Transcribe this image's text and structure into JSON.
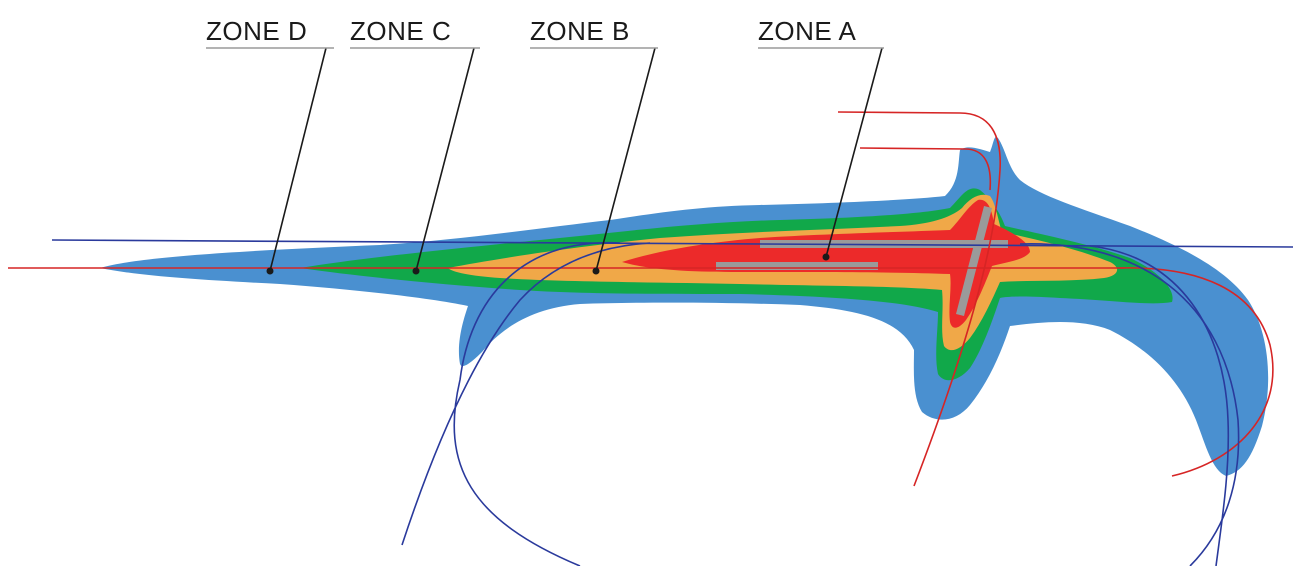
{
  "labels": {
    "zone_a": "ZONE A",
    "zone_b": "ZONE B",
    "zone_c": "ZONE C",
    "zone_d": "ZONE D"
  },
  "colors": {
    "zone_d": "#4a90d0",
    "zone_c": "#11a84a",
    "zone_b": "#f0a848",
    "zone_a": "#ec2a2a",
    "runway": "#9a9a9a",
    "flight_track_red": "#d62525",
    "flight_track_blue": "#2a3a9c",
    "leader_line": "#1a1a1a",
    "label_underline": "#9a9a9a"
  }
}
